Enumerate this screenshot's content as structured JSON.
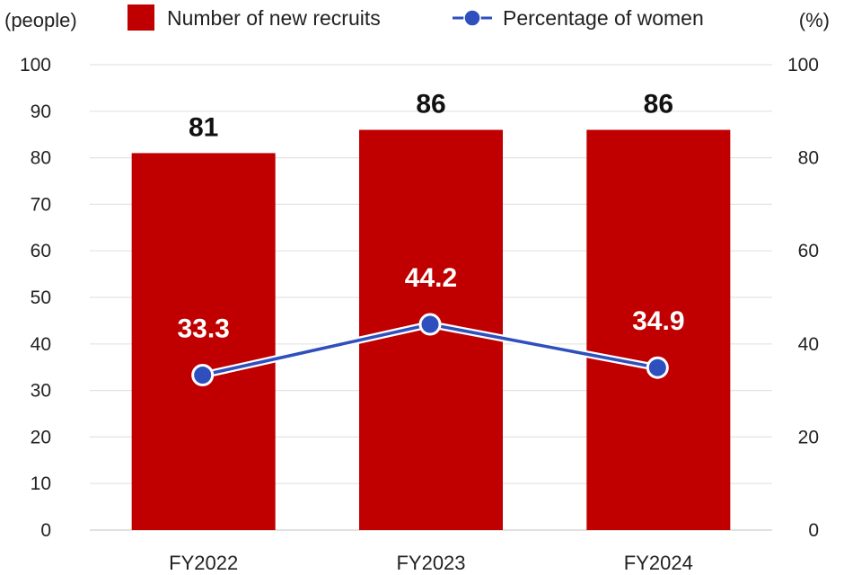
{
  "chart_data": {
    "type": "bar",
    "categories": [
      "FY2022",
      "FY2023",
      "FY2024"
    ],
    "series": [
      {
        "name": "Number of new recruits",
        "type": "bar",
        "axis": "left",
        "values": [
          81,
          86,
          86
        ],
        "color": "#c00000"
      },
      {
        "name": "Percentage of women",
        "type": "line",
        "axis": "right",
        "values": [
          33.3,
          44.2,
          34.9
        ],
        "color": "#2e4fbd"
      }
    ],
    "left_axis": {
      "unit": "(people)",
      "ylim": [
        0,
        100
      ],
      "ticks": [
        "0",
        "10",
        "20",
        "30",
        "40",
        "50",
        "60",
        "70",
        "80",
        "90",
        "100"
      ]
    },
    "right_axis": {
      "unit": "(%)",
      "ylim": [
        0,
        100
      ],
      "ticks": [
        "0",
        "20",
        "40",
        "60",
        "80",
        "100"
      ]
    },
    "bar_labels": [
      "81",
      "86",
      "86"
    ],
    "line_labels": [
      "33.3",
      "44.2",
      "34.9"
    ],
    "grid": true,
    "legend_position": "top"
  }
}
